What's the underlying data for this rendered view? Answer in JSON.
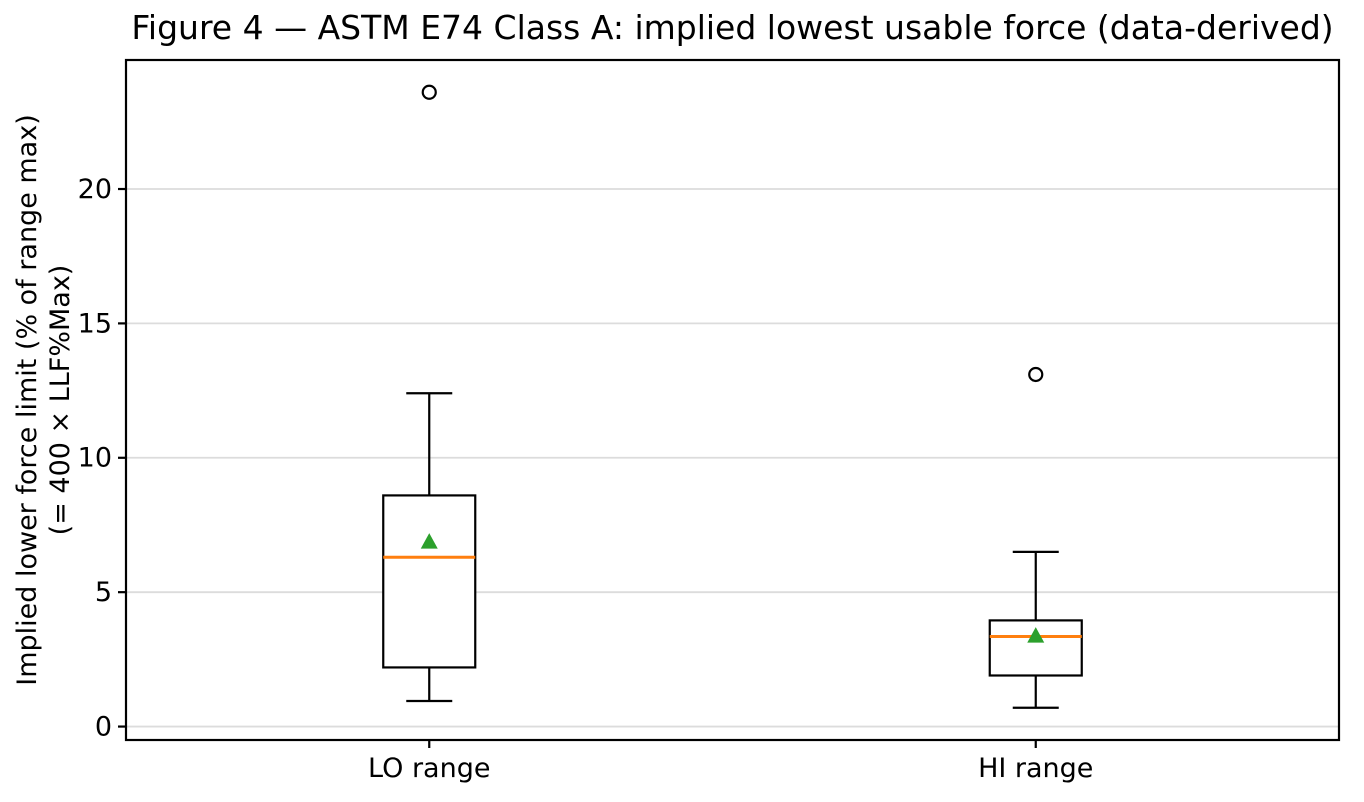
{
  "figure": {
    "background": "#ffffff"
  },
  "chart_data": {
    "type": "boxplot",
    "title": "Figure 4 — ASTM E74 Class A: implied lowest usable force (data-derived)",
    "ylabel_line1": "Implied lower force limit (% of range max)",
    "ylabel_line2": "(= 400 × LLF%Max)",
    "xlabel": "",
    "categories": [
      "LO range",
      "HI range"
    ],
    "yticks": [
      0,
      5,
      10,
      15,
      20
    ],
    "ylim": [
      -0.5,
      24.8
    ],
    "grid": "horizontal-only",
    "legend": "none",
    "series": [
      {
        "name": "LO range",
        "whisker_low": 0.95,
        "q1": 2.2,
        "median": 6.3,
        "mean": 6.9,
        "q3": 8.6,
        "whisker_high": 12.4,
        "outliers": [
          23.6
        ]
      },
      {
        "name": "HI range",
        "whisker_low": 0.7,
        "q1": 1.9,
        "median": 3.35,
        "mean": 3.4,
        "q3": 3.95,
        "whisker_high": 6.5,
        "outliers": [
          13.1
        ]
      }
    ],
    "colors": {
      "box_edge": "#000000",
      "median": "#ff7f0e",
      "mean_marker": "#2ca02c",
      "outlier_edge": "#000000",
      "grid": "#dcdcdc",
      "spine": "#000000"
    }
  }
}
